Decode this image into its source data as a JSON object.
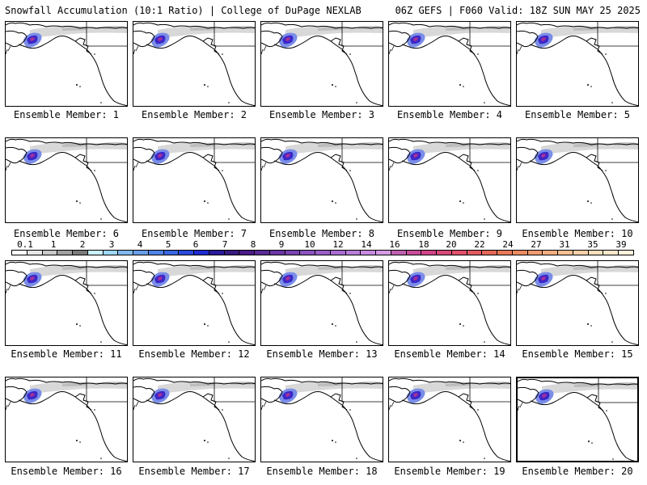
{
  "header": {
    "title_left": "Snowfall Accumulation (10:1 Ratio) | College of DuPage NEXLAB",
    "title_right": "06Z GEFS | F060 Valid: 18Z SUN MAY 25 2025"
  },
  "members": [
    {
      "label": "Ensemble Member: 1"
    },
    {
      "label": "Ensemble Member: 2"
    },
    {
      "label": "Ensemble Member: 3"
    },
    {
      "label": "Ensemble Member: 4"
    },
    {
      "label": "Ensemble Member: 5"
    },
    {
      "label": "Ensemble Member: 6"
    },
    {
      "label": "Ensemble Member: 7"
    },
    {
      "label": "Ensemble Member: 8"
    },
    {
      "label": "Ensemble Member: 9"
    },
    {
      "label": "Ensemble Member: 10"
    },
    {
      "label": "Ensemble Member: 11"
    },
    {
      "label": "Ensemble Member: 12"
    },
    {
      "label": "Ensemble Member: 13"
    },
    {
      "label": "Ensemble Member: 14"
    },
    {
      "label": "Ensemble Member: 15"
    },
    {
      "label": "Ensemble Member: 16"
    },
    {
      "label": "Ensemble Member: 17"
    },
    {
      "label": "Ensemble Member: 18"
    },
    {
      "label": "Ensemble Member: 19"
    },
    {
      "label": "Ensemble Member: 20"
    }
  ],
  "colorbar": {
    "ticks": [
      "0.1",
      "1",
      "2",
      "3",
      "4",
      "5",
      "6",
      "7",
      "8",
      "9",
      "10",
      "12",
      "14",
      "16",
      "18",
      "20",
      "22",
      "24",
      "27",
      "31",
      "35",
      "39"
    ],
    "colors": [
      "#ffffff",
      "#e6e6e6",
      "#c8c8c8",
      "#a0a0a0",
      "#7a7a7a",
      "#c8f0ff",
      "#9ed8f8",
      "#80b8ee",
      "#6a9ee8",
      "#4f82e6",
      "#3a66e2",
      "#2a4adc",
      "#1f2ad0",
      "#2a1a9c",
      "#3a1a80",
      "#4a1a88",
      "#5a2a96",
      "#6a36a6",
      "#7a44b2",
      "#8a52be",
      "#9a5ec8",
      "#a86cd2",
      "#b87ed8",
      "#c88ae0",
      "#d49ae4",
      "#c060b0",
      "#c84c98",
      "#d04488",
      "#d84878",
      "#e0506c",
      "#e05a60",
      "#e46858",
      "#e87858",
      "#ec8a62",
      "#f09c70",
      "#f2ae80",
      "#f4c094",
      "#f6d0a8",
      "#f8deba",
      "#fae8cc",
      "#fcf0dc"
    ]
  }
}
